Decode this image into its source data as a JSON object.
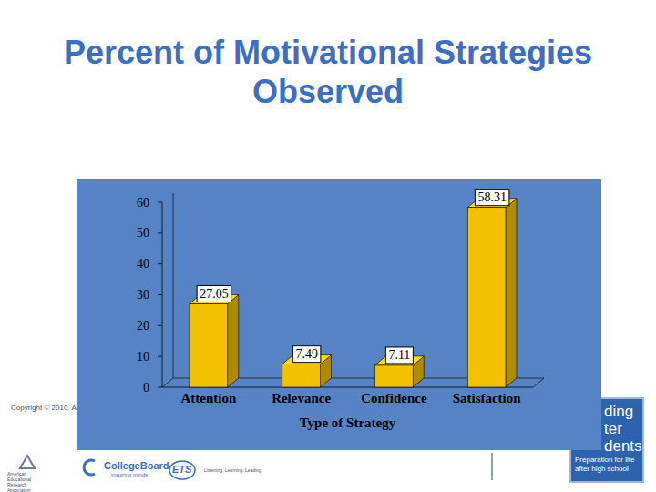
{
  "chart_data": {
    "type": "bar",
    "title": "Percent of Motivational Strategies Observed",
    "categories": [
      "Attention",
      "Relevance",
      "Confidence",
      "Satisfaction"
    ],
    "values": [
      27.05,
      7.49,
      7.11,
      58.31
    ],
    "x_label": "Type of Strategy",
    "color": "#f2c200",
    "ylim": [
      0,
      60
    ],
    "yticks": [
      0,
      10,
      20,
      30,
      40,
      50,
      60
    ],
    "data_labels": true
  },
  "slide": {
    "copyright": "Copyright © 2010. A",
    "logos": [
      "American Educational Research Association",
      "CollegeBoard",
      "inspiring minds",
      "ETS",
      "Listening. Learning. Leading."
    ],
    "badge": {
      "lines": [
        "ding",
        "ter",
        "dents"
      ],
      "tagline": "Preparation for life after high school"
    }
  }
}
